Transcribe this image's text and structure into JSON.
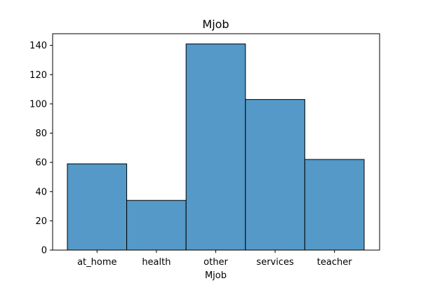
{
  "chart_data": {
    "type": "bar",
    "title": "Mjob",
    "xlabel": "Mjob",
    "ylabel": "",
    "categories": [
      "at_home",
      "health",
      "other",
      "services",
      "teacher"
    ],
    "values": [
      59,
      34,
      141,
      103,
      62
    ],
    "ylim": [
      0,
      148
    ],
    "yticks": [
      0,
      20,
      40,
      60,
      80,
      100,
      120,
      140
    ],
    "grid": false,
    "bar_color": "#5499c7",
    "edge_color": "#000000"
  }
}
